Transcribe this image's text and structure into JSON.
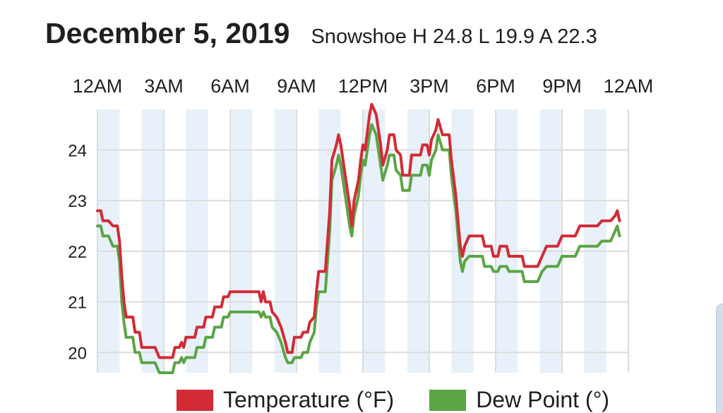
{
  "header": {
    "title": "December 5, 2019",
    "subtitle": "Snowshoe H 24.8 L 19.9 A 22.3"
  },
  "colors": {
    "temperature": "#d32a35",
    "dew_point": "#5aa546",
    "band": "#e8f1fa",
    "grid": "#dcdcdc"
  },
  "chart_data": {
    "type": "line",
    "x_ticks": [
      "12AM",
      "3AM",
      "6AM",
      "9AM",
      "12PM",
      "3PM",
      "6PM",
      "9PM",
      "12AM"
    ],
    "y_ticks": [
      "20",
      "21",
      "22",
      "23",
      "24"
    ],
    "xlim": [
      0,
      24
    ],
    "ylim": [
      19.6,
      24.8
    ],
    "grid": true,
    "legend_position": "bottom",
    "series": [
      {
        "name": "Temperature (°F)",
        "key": "temperature",
        "points": [
          [
            0.0,
            22.8
          ],
          [
            0.15,
            22.8
          ],
          [
            0.25,
            22.6
          ],
          [
            0.5,
            22.6
          ],
          [
            0.7,
            22.5
          ],
          [
            0.9,
            22.5
          ],
          [
            1.0,
            22.2
          ],
          [
            1.1,
            21.5
          ],
          [
            1.2,
            21.0
          ],
          [
            1.3,
            20.7
          ],
          [
            1.6,
            20.7
          ],
          [
            1.7,
            20.4
          ],
          [
            1.9,
            20.4
          ],
          [
            2.0,
            20.1
          ],
          [
            2.5,
            20.1
          ],
          [
            2.6,
            20.1
          ],
          [
            2.8,
            19.9
          ],
          [
            3.4,
            19.9
          ],
          [
            3.5,
            20.1
          ],
          [
            3.7,
            20.1
          ],
          [
            3.8,
            20.2
          ],
          [
            3.9,
            20.1
          ],
          [
            4.0,
            20.3
          ],
          [
            4.4,
            20.3
          ],
          [
            4.5,
            20.5
          ],
          [
            4.8,
            20.5
          ],
          [
            4.9,
            20.7
          ],
          [
            5.2,
            20.7
          ],
          [
            5.3,
            20.9
          ],
          [
            5.6,
            20.9
          ],
          [
            5.7,
            21.1
          ],
          [
            5.9,
            21.1
          ],
          [
            6.0,
            21.2
          ],
          [
            7.3,
            21.2
          ],
          [
            7.4,
            21.0
          ],
          [
            7.5,
            21.2
          ],
          [
            7.6,
            21.0
          ],
          [
            7.8,
            21.0
          ],
          [
            7.9,
            20.8
          ],
          [
            8.1,
            20.7
          ],
          [
            8.3,
            20.5
          ],
          [
            8.5,
            20.2
          ],
          [
            8.6,
            20.0
          ],
          [
            8.8,
            20.0
          ],
          [
            8.9,
            20.3
          ],
          [
            9.2,
            20.3
          ],
          [
            9.3,
            20.4
          ],
          [
            9.5,
            20.4
          ],
          [
            9.6,
            20.6
          ],
          [
            9.8,
            20.7
          ],
          [
            9.9,
            21.2
          ],
          [
            10.0,
            21.6
          ],
          [
            10.3,
            21.6
          ],
          [
            10.4,
            22.2
          ],
          [
            10.5,
            22.8
          ],
          [
            10.6,
            23.8
          ],
          [
            10.8,
            24.1
          ],
          [
            10.9,
            24.3
          ],
          [
            11.0,
            24.1
          ],
          [
            11.2,
            23.5
          ],
          [
            11.4,
            22.9
          ],
          [
            11.5,
            22.5
          ],
          [
            11.6,
            23.0
          ],
          [
            11.8,
            23.4
          ],
          [
            11.9,
            23.8
          ],
          [
            12.0,
            24.1
          ],
          [
            12.1,
            24.0
          ],
          [
            12.3,
            24.7
          ],
          [
            12.4,
            24.9
          ],
          [
            12.6,
            24.7
          ],
          [
            12.8,
            24.1
          ],
          [
            12.9,
            23.7
          ],
          [
            13.1,
            24.0
          ],
          [
            13.2,
            24.3
          ],
          [
            13.4,
            24.3
          ],
          [
            13.5,
            24.0
          ],
          [
            13.7,
            23.9
          ],
          [
            13.8,
            23.5
          ],
          [
            14.1,
            23.5
          ],
          [
            14.2,
            23.9
          ],
          [
            14.6,
            23.9
          ],
          [
            14.7,
            24.1
          ],
          [
            14.9,
            24.1
          ],
          [
            15.0,
            23.9
          ],
          [
            15.1,
            24.2
          ],
          [
            15.3,
            24.4
          ],
          [
            15.4,
            24.6
          ],
          [
            15.6,
            24.3
          ],
          [
            15.9,
            24.3
          ],
          [
            16.0,
            23.8
          ],
          [
            16.2,
            23.1
          ],
          [
            16.3,
            22.6
          ],
          [
            16.4,
            22.1
          ],
          [
            16.5,
            21.9
          ],
          [
            16.6,
            22.1
          ],
          [
            16.8,
            22.3
          ],
          [
            17.4,
            22.3
          ],
          [
            17.5,
            22.1
          ],
          [
            17.8,
            22.1
          ],
          [
            17.9,
            21.9
          ],
          [
            18.1,
            21.9
          ],
          [
            18.2,
            22.1
          ],
          [
            18.5,
            22.1
          ],
          [
            18.6,
            21.9
          ],
          [
            19.2,
            21.9
          ],
          [
            19.3,
            21.7
          ],
          [
            19.9,
            21.7
          ],
          [
            20.1,
            21.9
          ],
          [
            20.3,
            22.1
          ],
          [
            20.8,
            22.1
          ],
          [
            21.0,
            22.3
          ],
          [
            21.6,
            22.3
          ],
          [
            21.8,
            22.5
          ],
          [
            22.6,
            22.5
          ],
          [
            22.8,
            22.6
          ],
          [
            23.2,
            22.6
          ],
          [
            23.4,
            22.7
          ],
          [
            23.5,
            22.8
          ],
          [
            23.6,
            22.6
          ]
        ]
      },
      {
        "name": "Dew Point (°)",
        "key": "dew_point",
        "points": [
          [
            0.0,
            22.5
          ],
          [
            0.15,
            22.5
          ],
          [
            0.25,
            22.3
          ],
          [
            0.5,
            22.3
          ],
          [
            0.7,
            22.1
          ],
          [
            0.9,
            22.1
          ],
          [
            1.0,
            21.8
          ],
          [
            1.1,
            21.0
          ],
          [
            1.2,
            20.6
          ],
          [
            1.3,
            20.3
          ],
          [
            1.6,
            20.3
          ],
          [
            1.7,
            20.0
          ],
          [
            1.9,
            20.0
          ],
          [
            2.0,
            19.8
          ],
          [
            2.5,
            19.8
          ],
          [
            2.6,
            19.8
          ],
          [
            2.8,
            19.6
          ],
          [
            3.4,
            19.6
          ],
          [
            3.5,
            19.8
          ],
          [
            3.7,
            19.8
          ],
          [
            3.8,
            19.9
          ],
          [
            3.9,
            19.8
          ],
          [
            4.0,
            19.9
          ],
          [
            4.4,
            19.9
          ],
          [
            4.5,
            20.1
          ],
          [
            4.8,
            20.1
          ],
          [
            4.9,
            20.3
          ],
          [
            5.2,
            20.3
          ],
          [
            5.3,
            20.5
          ],
          [
            5.6,
            20.5
          ],
          [
            5.7,
            20.7
          ],
          [
            5.9,
            20.7
          ],
          [
            6.0,
            20.8
          ],
          [
            7.3,
            20.8
          ],
          [
            7.4,
            20.7
          ],
          [
            7.5,
            20.8
          ],
          [
            7.6,
            20.7
          ],
          [
            7.8,
            20.7
          ],
          [
            7.9,
            20.5
          ],
          [
            8.1,
            20.4
          ],
          [
            8.3,
            20.2
          ],
          [
            8.5,
            19.9
          ],
          [
            8.6,
            19.8
          ],
          [
            8.8,
            19.8
          ],
          [
            8.9,
            19.9
          ],
          [
            9.2,
            19.9
          ],
          [
            9.3,
            20.0
          ],
          [
            9.5,
            20.0
          ],
          [
            9.6,
            20.2
          ],
          [
            9.8,
            20.4
          ],
          [
            9.9,
            20.9
          ],
          [
            10.0,
            21.2
          ],
          [
            10.3,
            21.2
          ],
          [
            10.4,
            21.8
          ],
          [
            10.5,
            22.4
          ],
          [
            10.6,
            23.4
          ],
          [
            10.8,
            23.7
          ],
          [
            10.9,
            23.9
          ],
          [
            11.0,
            23.7
          ],
          [
            11.2,
            23.1
          ],
          [
            11.4,
            22.5
          ],
          [
            11.5,
            22.3
          ],
          [
            11.6,
            22.7
          ],
          [
            11.8,
            23.1
          ],
          [
            11.9,
            23.5
          ],
          [
            12.0,
            23.8
          ],
          [
            12.1,
            23.7
          ],
          [
            12.3,
            24.3
          ],
          [
            12.4,
            24.5
          ],
          [
            12.6,
            24.3
          ],
          [
            12.8,
            23.7
          ],
          [
            12.9,
            23.4
          ],
          [
            13.1,
            23.7
          ],
          [
            13.2,
            23.9
          ],
          [
            13.4,
            23.9
          ],
          [
            13.5,
            23.6
          ],
          [
            13.7,
            23.5
          ],
          [
            13.8,
            23.2
          ],
          [
            14.1,
            23.2
          ],
          [
            14.2,
            23.5
          ],
          [
            14.6,
            23.5
          ],
          [
            14.7,
            23.7
          ],
          [
            14.9,
            23.7
          ],
          [
            15.0,
            23.5
          ],
          [
            15.1,
            23.8
          ],
          [
            15.3,
            24.0
          ],
          [
            15.4,
            24.3
          ],
          [
            15.6,
            24.0
          ],
          [
            15.9,
            24.0
          ],
          [
            16.0,
            23.5
          ],
          [
            16.2,
            22.8
          ],
          [
            16.3,
            22.3
          ],
          [
            16.4,
            21.8
          ],
          [
            16.5,
            21.6
          ],
          [
            16.6,
            21.8
          ],
          [
            16.8,
            21.9
          ],
          [
            17.4,
            21.9
          ],
          [
            17.5,
            21.7
          ],
          [
            17.8,
            21.7
          ],
          [
            17.9,
            21.6
          ],
          [
            18.1,
            21.6
          ],
          [
            18.2,
            21.7
          ],
          [
            18.5,
            21.7
          ],
          [
            18.6,
            21.6
          ],
          [
            19.2,
            21.6
          ],
          [
            19.3,
            21.4
          ],
          [
            19.9,
            21.4
          ],
          [
            20.1,
            21.6
          ],
          [
            20.3,
            21.7
          ],
          [
            20.8,
            21.7
          ],
          [
            21.0,
            21.9
          ],
          [
            21.6,
            21.9
          ],
          [
            21.8,
            22.1
          ],
          [
            22.6,
            22.1
          ],
          [
            22.8,
            22.2
          ],
          [
            23.2,
            22.2
          ],
          [
            23.4,
            22.4
          ],
          [
            23.5,
            22.5
          ],
          [
            23.6,
            22.3
          ]
        ]
      }
    ]
  }
}
